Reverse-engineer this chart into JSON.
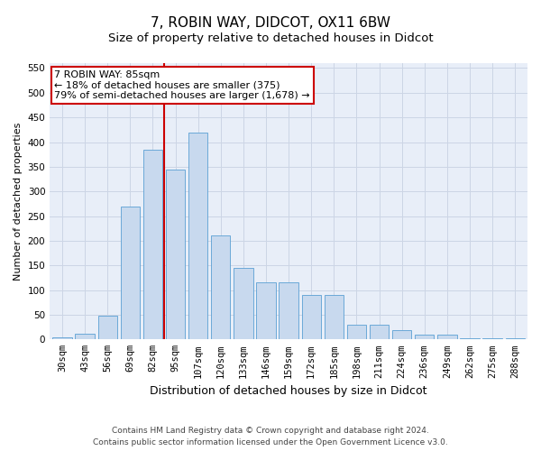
{
  "title": "7, ROBIN WAY, DIDCOT, OX11 6BW",
  "subtitle": "Size of property relative to detached houses in Didcot",
  "xlabel": "Distribution of detached houses by size in Didcot",
  "ylabel": "Number of detached properties",
  "footer_line1": "Contains HM Land Registry data © Crown copyright and database right 2024.",
  "footer_line2": "Contains public sector information licensed under the Open Government Licence v3.0.",
  "bar_labels": [
    "30sqm",
    "43sqm",
    "56sqm",
    "69sqm",
    "82sqm",
    "95sqm",
    "107sqm",
    "120sqm",
    "133sqm",
    "146sqm",
    "159sqm",
    "172sqm",
    "185sqm",
    "198sqm",
    "211sqm",
    "224sqm",
    "236sqm",
    "249sqm",
    "262sqm",
    "275sqm",
    "288sqm"
  ],
  "bar_values": [
    5,
    11,
    48,
    270,
    385,
    345,
    420,
    210,
    145,
    115,
    115,
    90,
    90,
    30,
    30,
    18,
    10,
    10,
    3,
    3,
    3
  ],
  "bar_color": "#c8d9ee",
  "bar_edge_color": "#5a9fd4",
  "annotation_box_text": "7 ROBIN WAY: 85sqm\n← 18% of detached houses are smaller (375)\n79% of semi-detached houses are larger (1,678) →",
  "annotation_box_color": "#ffffff",
  "annotation_box_edge_color": "#cc0000",
  "vline_color": "#cc0000",
  "ylim": [
    0,
    560
  ],
  "yticks": [
    0,
    50,
    100,
    150,
    200,
    250,
    300,
    350,
    400,
    450,
    500,
    550
  ],
  "grid_color": "#ccd5e5",
  "background_color": "#e8eef8",
  "title_fontsize": 11,
  "subtitle_fontsize": 9.5,
  "xlabel_fontsize": 9,
  "ylabel_fontsize": 8,
  "tick_fontsize": 7.5,
  "annotation_fontsize": 8,
  "footer_fontsize": 6.5
}
